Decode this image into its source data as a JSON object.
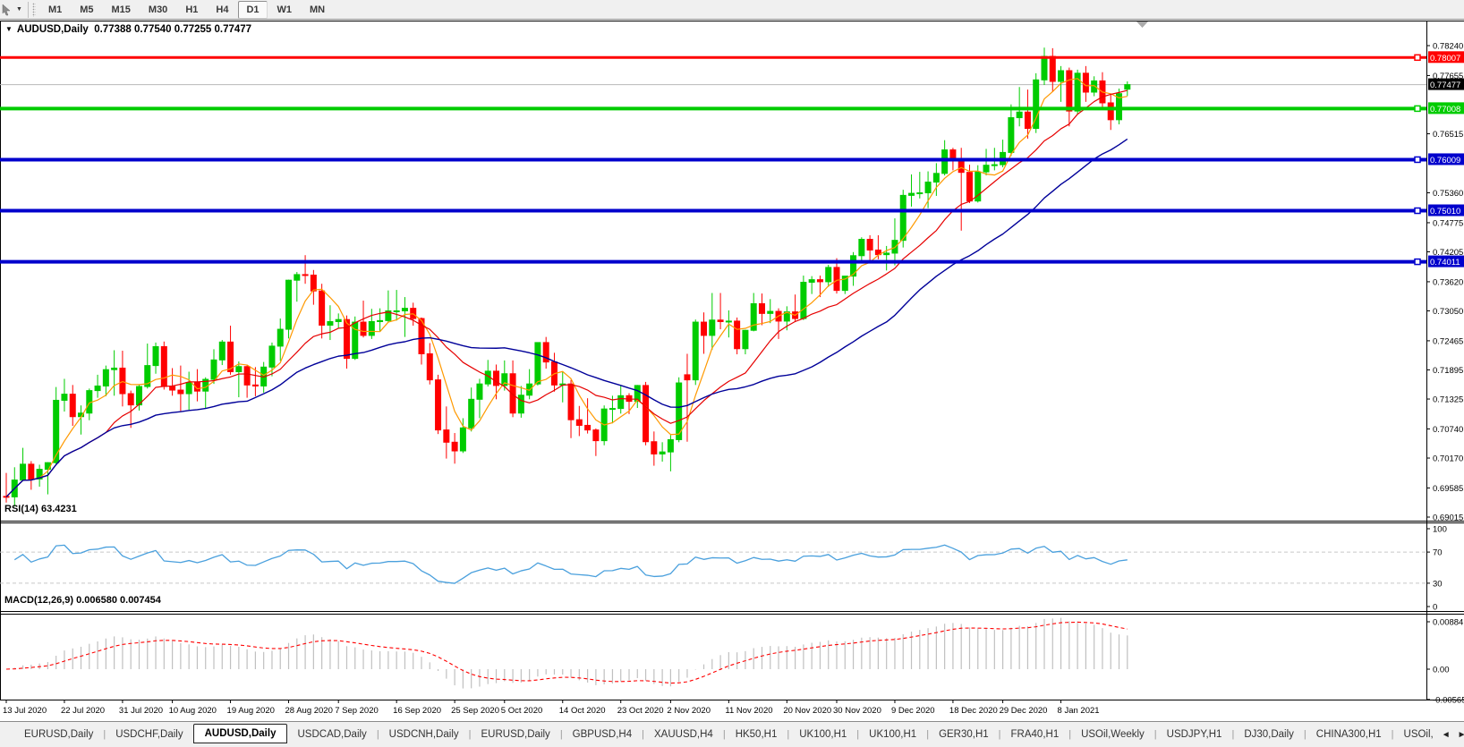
{
  "toolbar": {
    "cursor_icon": "pointer-arrow",
    "dropdown_icon": "caret-down",
    "timeframes": [
      "M1",
      "M5",
      "M15",
      "M30",
      "H1",
      "H4",
      "D1",
      "W1",
      "MN"
    ],
    "active_timeframe": "D1"
  },
  "header": {
    "collapse_icon": "▼",
    "title": "AUDUSD,Daily",
    "ohlc": "0.77388 0.77540 0.77255 0.77477"
  },
  "indicators": {
    "rsi_label": "RSI(14) 63.4231",
    "macd_label": "MACD(12,26,9) 0.006580 0.007454"
  },
  "price_axis": {
    "ticks": [
      {
        "label": "0.78240",
        "price": 0.7824
      },
      {
        "label": "0.77655",
        "price": 0.77655
      },
      {
        "label": "0.76515",
        "price": 0.76515
      },
      {
        "label": "0.75360",
        "price": 0.7536
      },
      {
        "label": "0.74775",
        "price": 0.74775
      },
      {
        "label": "0.74205",
        "price": 0.74205
      },
      {
        "label": "0.73620",
        "price": 0.7362
      },
      {
        "label": "0.73050",
        "price": 0.7305
      },
      {
        "label": "0.72465",
        "price": 0.72465
      },
      {
        "label": "0.71895",
        "price": 0.71895
      },
      {
        "label": "0.71325",
        "price": 0.71325
      },
      {
        "label": "0.70740",
        "price": 0.7074
      },
      {
        "label": "0.70170",
        "price": 0.7017
      },
      {
        "label": "0.69585",
        "price": 0.69585
      },
      {
        "label": "0.69015",
        "price": 0.69015
      }
    ],
    "current_price": {
      "label": "0.77477",
      "price": 0.77477,
      "bg": "#000000",
      "fg": "#ffffff"
    }
  },
  "rsi_axis": {
    "ticks": [
      {
        "label": "100",
        "value": 100
      },
      {
        "label": "70",
        "value": 70
      },
      {
        "label": "30",
        "value": 30
      },
      {
        "label": "0",
        "value": 0
      }
    ],
    "dashed_levels": [
      70,
      30
    ]
  },
  "macd_axis": {
    "ticks": [
      {
        "label": "0.00884",
        "value": 0.00884
      },
      {
        "label": "0.00",
        "value": 0
      },
      {
        "label": "-0.00565",
        "value": -0.00565
      }
    ]
  },
  "x_axis": {
    "labels": [
      {
        "text": "13 Jul 2020",
        "bar": 0
      },
      {
        "text": "22 Jul 2020",
        "bar": 7
      },
      {
        "text": "31 Jul 2020",
        "bar": 14
      },
      {
        "text": "10 Aug 2020",
        "bar": 20
      },
      {
        "text": "19 Aug 2020",
        "bar": 27
      },
      {
        "text": "28 Aug 2020",
        "bar": 34
      },
      {
        "text": "7 Sep 2020",
        "bar": 40
      },
      {
        "text": "16 Sep 2020",
        "bar": 47
      },
      {
        "text": "25 Sep 2020",
        "bar": 54
      },
      {
        "text": "5 Oct 2020",
        "bar": 60
      },
      {
        "text": "14 Oct 2020",
        "bar": 67
      },
      {
        "text": "23 Oct 2020",
        "bar": 74
      },
      {
        "text": "2 Nov 2020",
        "bar": 80
      },
      {
        "text": "11 Nov 2020",
        "bar": 87
      },
      {
        "text": "20 Nov 2020",
        "bar": 94
      },
      {
        "text": "30 Nov 2020",
        "bar": 100
      },
      {
        "text": "9 Dec 2020",
        "bar": 107
      },
      {
        "text": "18 Dec 2020",
        "bar": 114
      },
      {
        "text": "29 Dec 2020",
        "bar": 120
      },
      {
        "text": "8 Jan 2021",
        "bar": 127
      }
    ]
  },
  "horizontal_lines": [
    {
      "label": "0.78007",
      "price": 0.78007,
      "color": "#ff0000",
      "width": 3
    },
    {
      "label": "0.77008",
      "price": 0.77008,
      "color": "#00cc00",
      "width": 4
    },
    {
      "label": "0.76009",
      "price": 0.76009,
      "color": "#0000cc",
      "width": 4
    },
    {
      "label": "0.75010",
      "price": 0.7501,
      "color": "#0000cc",
      "width": 4
    },
    {
      "label": "0.74011",
      "price": 0.74011,
      "color": "#0000cc",
      "width": 4
    }
  ],
  "tabs": {
    "items": [
      {
        "label": "EURUSD,Daily",
        "active": false
      },
      {
        "label": "USDCHF,Daily",
        "active": false
      },
      {
        "label": "AUDUSD,Daily",
        "active": true
      },
      {
        "label": "USDCAD,Daily",
        "active": false
      },
      {
        "label": "USDCNH,Daily",
        "active": false
      },
      {
        "label": "EURUSD,Daily",
        "active": false
      },
      {
        "label": "GBPUSD,H4",
        "active": false
      },
      {
        "label": "XAUUSD,H4",
        "active": false
      },
      {
        "label": "HK50,H1",
        "active": false
      },
      {
        "label": "UK100,H1",
        "active": false
      },
      {
        "label": "UK100,H1",
        "active": false
      },
      {
        "label": "GER30,H1",
        "active": false
      },
      {
        "label": "FRA40,H1",
        "active": false
      },
      {
        "label": "USOil,Weekly",
        "active": false
      },
      {
        "label": "USDJPY,H1",
        "active": false
      },
      {
        "label": "DJ30,Daily",
        "active": false
      },
      {
        "label": "CHINA300,H1",
        "active": false
      },
      {
        "label": "USOil,",
        "active": false
      }
    ],
    "scroll_left_icon": "◄",
    "scroll_right_icon": "►"
  },
  "chart_data": {
    "type": "candlestick",
    "symbol": "AUDUSD",
    "timeframe": "Daily",
    "start_date": "13 Jul 2020",
    "end_date": "20 Jan 2021",
    "colors": {
      "bull": "#00cc00",
      "bear": "#ff0000",
      "ma_fast": "#ff9900",
      "ma_mid": "#e60000",
      "ma_slow": "#000099",
      "rsi_line": "#4aa0dd",
      "macd_hist": "#c0c0c0",
      "macd_signal": "#ff0000",
      "current_price_line": "#b8b8b8"
    },
    "moving_averages": [
      {
        "name": "fast",
        "period": 5,
        "color": "#ff9900"
      },
      {
        "name": "mid",
        "period": 13,
        "color": "#e60000"
      },
      {
        "name": "slow",
        "period": 30,
        "color": "#000099"
      }
    ],
    "rsi": {
      "period": 14,
      "current": 63.4231
    },
    "macd": {
      "fast": 12,
      "slow": 26,
      "signal": 9,
      "current_macd": 0.00658,
      "current_signal": 0.007454
    },
    "candles": [
      [
        0.6942,
        0.6988,
        0.693,
        0.6941
      ],
      [
        0.6941,
        0.6999,
        0.6922,
        0.6974
      ],
      [
        0.6974,
        0.7037,
        0.6973,
        0.7005
      ],
      [
        0.7005,
        0.7011,
        0.6955,
        0.6976
      ],
      [
        0.6976,
        0.7004,
        0.6961,
        0.6995
      ],
      [
        0.6995,
        0.7009,
        0.6946,
        0.7008
      ],
      [
        0.7008,
        0.7156,
        0.7005,
        0.713
      ],
      [
        0.713,
        0.7172,
        0.7108,
        0.7142
      ],
      [
        0.7142,
        0.716,
        0.708,
        0.7098
      ],
      [
        0.7098,
        0.712,
        0.7063,
        0.7105
      ],
      [
        0.7105,
        0.7153,
        0.7091,
        0.7149
      ],
      [
        0.7149,
        0.718,
        0.7135,
        0.7158
      ],
      [
        0.7158,
        0.7198,
        0.7138,
        0.719
      ],
      [
        0.719,
        0.7228,
        0.7139,
        0.7193
      ],
      [
        0.7193,
        0.7227,
        0.7118,
        0.7143
      ],
      [
        0.7143,
        0.7149,
        0.7076,
        0.7121
      ],
      [
        0.7121,
        0.716,
        0.711,
        0.7157
      ],
      [
        0.7157,
        0.7241,
        0.7153,
        0.7198
      ],
      [
        0.7198,
        0.7243,
        0.7182,
        0.7235
      ],
      [
        0.7235,
        0.7245,
        0.7151,
        0.7157
      ],
      [
        0.7157,
        0.7193,
        0.7139,
        0.715
      ],
      [
        0.715,
        0.7198,
        0.7109,
        0.7143
      ],
      [
        0.7143,
        0.7186,
        0.7111,
        0.7165
      ],
      [
        0.7165,
        0.7191,
        0.7128,
        0.7148
      ],
      [
        0.7148,
        0.7175,
        0.7115,
        0.7171
      ],
      [
        0.7171,
        0.723,
        0.7162,
        0.7209
      ],
      [
        0.7209,
        0.7248,
        0.7199,
        0.7244
      ],
      [
        0.7244,
        0.7276,
        0.718,
        0.7186
      ],
      [
        0.7186,
        0.7206,
        0.7136,
        0.7196
      ],
      [
        0.7196,
        0.72,
        0.7135,
        0.716
      ],
      [
        0.716,
        0.7195,
        0.7138,
        0.7158
      ],
      [
        0.7158,
        0.7205,
        0.7145,
        0.7195
      ],
      [
        0.7195,
        0.7243,
        0.7177,
        0.7236
      ],
      [
        0.7236,
        0.729,
        0.7207,
        0.7269
      ],
      [
        0.7269,
        0.7366,
        0.7251,
        0.7365
      ],
      [
        0.7365,
        0.7381,
        0.7323,
        0.7376
      ],
      [
        0.7376,
        0.7414,
        0.7358,
        0.7375
      ],
      [
        0.7375,
        0.7385,
        0.7317,
        0.7344
      ],
      [
        0.7344,
        0.7358,
        0.7251,
        0.7277
      ],
      [
        0.7277,
        0.7316,
        0.7248,
        0.7284
      ],
      [
        0.7284,
        0.73,
        0.7272,
        0.7288
      ],
      [
        0.7288,
        0.7296,
        0.7192,
        0.7212
      ],
      [
        0.7212,
        0.7294,
        0.7209,
        0.7283
      ],
      [
        0.7283,
        0.7325,
        0.7253,
        0.7257
      ],
      [
        0.7257,
        0.7309,
        0.725,
        0.7284
      ],
      [
        0.7284,
        0.731,
        0.7264,
        0.7286
      ],
      [
        0.7286,
        0.7345,
        0.7282,
        0.7305
      ],
      [
        0.7305,
        0.7346,
        0.7286,
        0.7305
      ],
      [
        0.7305,
        0.7332,
        0.7254,
        0.731
      ],
      [
        0.731,
        0.7321,
        0.7276,
        0.729
      ],
      [
        0.729,
        0.7292,
        0.72,
        0.7221
      ],
      [
        0.7221,
        0.7242,
        0.7161,
        0.717
      ],
      [
        0.717,
        0.718,
        0.7064,
        0.7072
      ],
      [
        0.7072,
        0.7118,
        0.7016,
        0.7048
      ],
      [
        0.7048,
        0.7066,
        0.7006,
        0.7031
      ],
      [
        0.7031,
        0.7095,
        0.7027,
        0.7076
      ],
      [
        0.7076,
        0.7155,
        0.7069,
        0.7132
      ],
      [
        0.7132,
        0.7172,
        0.7095,
        0.7162
      ],
      [
        0.7162,
        0.7209,
        0.7157,
        0.7187
      ],
      [
        0.7187,
        0.72,
        0.7132,
        0.7159
      ],
      [
        0.7159,
        0.7208,
        0.7149,
        0.7182
      ],
      [
        0.7182,
        0.7208,
        0.7097,
        0.7105
      ],
      [
        0.7105,
        0.7158,
        0.7096,
        0.714
      ],
      [
        0.714,
        0.7191,
        0.7132,
        0.7162
      ],
      [
        0.7162,
        0.7243,
        0.7159,
        0.7243
      ],
      [
        0.7243,
        0.7254,
        0.7192,
        0.7205
      ],
      [
        0.7205,
        0.7223,
        0.7147,
        0.716
      ],
      [
        0.716,
        0.7186,
        0.7126,
        0.7162
      ],
      [
        0.7162,
        0.717,
        0.7056,
        0.7092
      ],
      [
        0.7092,
        0.7119,
        0.706,
        0.7081
      ],
      [
        0.7081,
        0.7134,
        0.7065,
        0.7072
      ],
      [
        0.7072,
        0.7075,
        0.7021,
        0.7051
      ],
      [
        0.7051,
        0.712,
        0.7042,
        0.7113
      ],
      [
        0.7113,
        0.7139,
        0.7085,
        0.7114
      ],
      [
        0.7114,
        0.7158,
        0.7104,
        0.7139
      ],
      [
        0.7139,
        0.7144,
        0.7103,
        0.7128
      ],
      [
        0.7128,
        0.716,
        0.7115,
        0.7159
      ],
      [
        0.7159,
        0.7166,
        0.7042,
        0.7049
      ],
      [
        0.7049,
        0.7069,
        0.7002,
        0.7025
      ],
      [
        0.7025,
        0.7048,
        0.701,
        0.7029
      ],
      [
        0.7029,
        0.7062,
        0.6991,
        0.7053
      ],
      [
        0.7053,
        0.7175,
        0.7048,
        0.7164
      ],
      [
        0.718,
        0.7221,
        0.7049,
        0.717
      ],
      [
        0.717,
        0.7288,
        0.716,
        0.7283
      ],
      [
        0.7283,
        0.7302,
        0.7221,
        0.7257
      ],
      [
        0.7257,
        0.734,
        0.7229,
        0.7287
      ],
      [
        0.7287,
        0.734,
        0.7269,
        0.7284
      ],
      [
        0.7284,
        0.7306,
        0.7253,
        0.7285
      ],
      [
        0.7285,
        0.7292,
        0.722,
        0.7231
      ],
      [
        0.7231,
        0.7268,
        0.722,
        0.7267
      ],
      [
        0.7267,
        0.734,
        0.7265,
        0.7319
      ],
      [
        0.7319,
        0.7339,
        0.7277,
        0.73
      ],
      [
        0.73,
        0.7328,
        0.7281,
        0.7304
      ],
      [
        0.7304,
        0.731,
        0.725,
        0.7285
      ],
      [
        0.7285,
        0.7314,
        0.7267,
        0.7303
      ],
      [
        0.7303,
        0.7337,
        0.7283,
        0.729
      ],
      [
        0.729,
        0.7374,
        0.7287,
        0.7361
      ],
      [
        0.7361,
        0.7373,
        0.7338,
        0.7366
      ],
      [
        0.7366,
        0.7374,
        0.7332,
        0.7362
      ],
      [
        0.7362,
        0.7395,
        0.7352,
        0.739
      ],
      [
        0.739,
        0.7408,
        0.7339,
        0.7345
      ],
      [
        0.7345,
        0.7373,
        0.7338,
        0.7373
      ],
      [
        0.7373,
        0.742,
        0.7354,
        0.7413
      ],
      [
        0.7413,
        0.7449,
        0.74,
        0.7445
      ],
      [
        0.7445,
        0.7453,
        0.7404,
        0.7424
      ],
      [
        0.7424,
        0.7453,
        0.7406,
        0.7415
      ],
      [
        0.7415,
        0.7432,
        0.7384,
        0.7418
      ],
      [
        0.7418,
        0.7486,
        0.7394,
        0.7443
      ],
      [
        0.7443,
        0.7542,
        0.7429,
        0.7531
      ],
      [
        0.7531,
        0.7572,
        0.7509,
        0.7535
      ],
      [
        0.7535,
        0.7577,
        0.7525,
        0.7536
      ],
      [
        0.7536,
        0.7578,
        0.7506,
        0.7557
      ],
      [
        0.7557,
        0.7594,
        0.753,
        0.7574
      ],
      [
        0.7574,
        0.7639,
        0.757,
        0.762
      ],
      [
        0.762,
        0.7624,
        0.758,
        0.76
      ],
      [
        0.76,
        0.7624,
        0.7462,
        0.7576
      ],
      [
        0.7576,
        0.7591,
        0.7516,
        0.752
      ],
      [
        0.752,
        0.759,
        0.7517,
        0.7577
      ],
      [
        0.7577,
        0.7622,
        0.757,
        0.759
      ],
      [
        0.759,
        0.7624,
        0.758,
        0.7591
      ],
      [
        0.7591,
        0.764,
        0.7586,
        0.7615
      ],
      [
        0.7615,
        0.7709,
        0.7608,
        0.7683
      ],
      [
        0.7683,
        0.7743,
        0.7666,
        0.7694
      ],
      [
        0.7694,
        0.7738,
        0.7642,
        0.7662
      ],
      [
        0.7662,
        0.777,
        0.7653,
        0.7757
      ],
      [
        0.7757,
        0.782,
        0.7747,
        0.7803
      ],
      [
        0.7803,
        0.7819,
        0.7733,
        0.7754
      ],
      [
        0.7754,
        0.7784,
        0.7714,
        0.7775
      ],
      [
        0.7775,
        0.7781,
        0.7666,
        0.7696
      ],
      [
        0.7696,
        0.7777,
        0.7689,
        0.777
      ],
      [
        0.777,
        0.7784,
        0.7714,
        0.7733
      ],
      [
        0.7733,
        0.7764,
        0.7725,
        0.7755
      ],
      [
        0.7755,
        0.7772,
        0.7702,
        0.7712
      ],
      [
        0.7712,
        0.773,
        0.7659,
        0.7679
      ],
      [
        0.7679,
        0.774,
        0.767,
        0.773
      ],
      [
        0.77388,
        0.7754,
        0.77255,
        0.77477
      ]
    ]
  }
}
